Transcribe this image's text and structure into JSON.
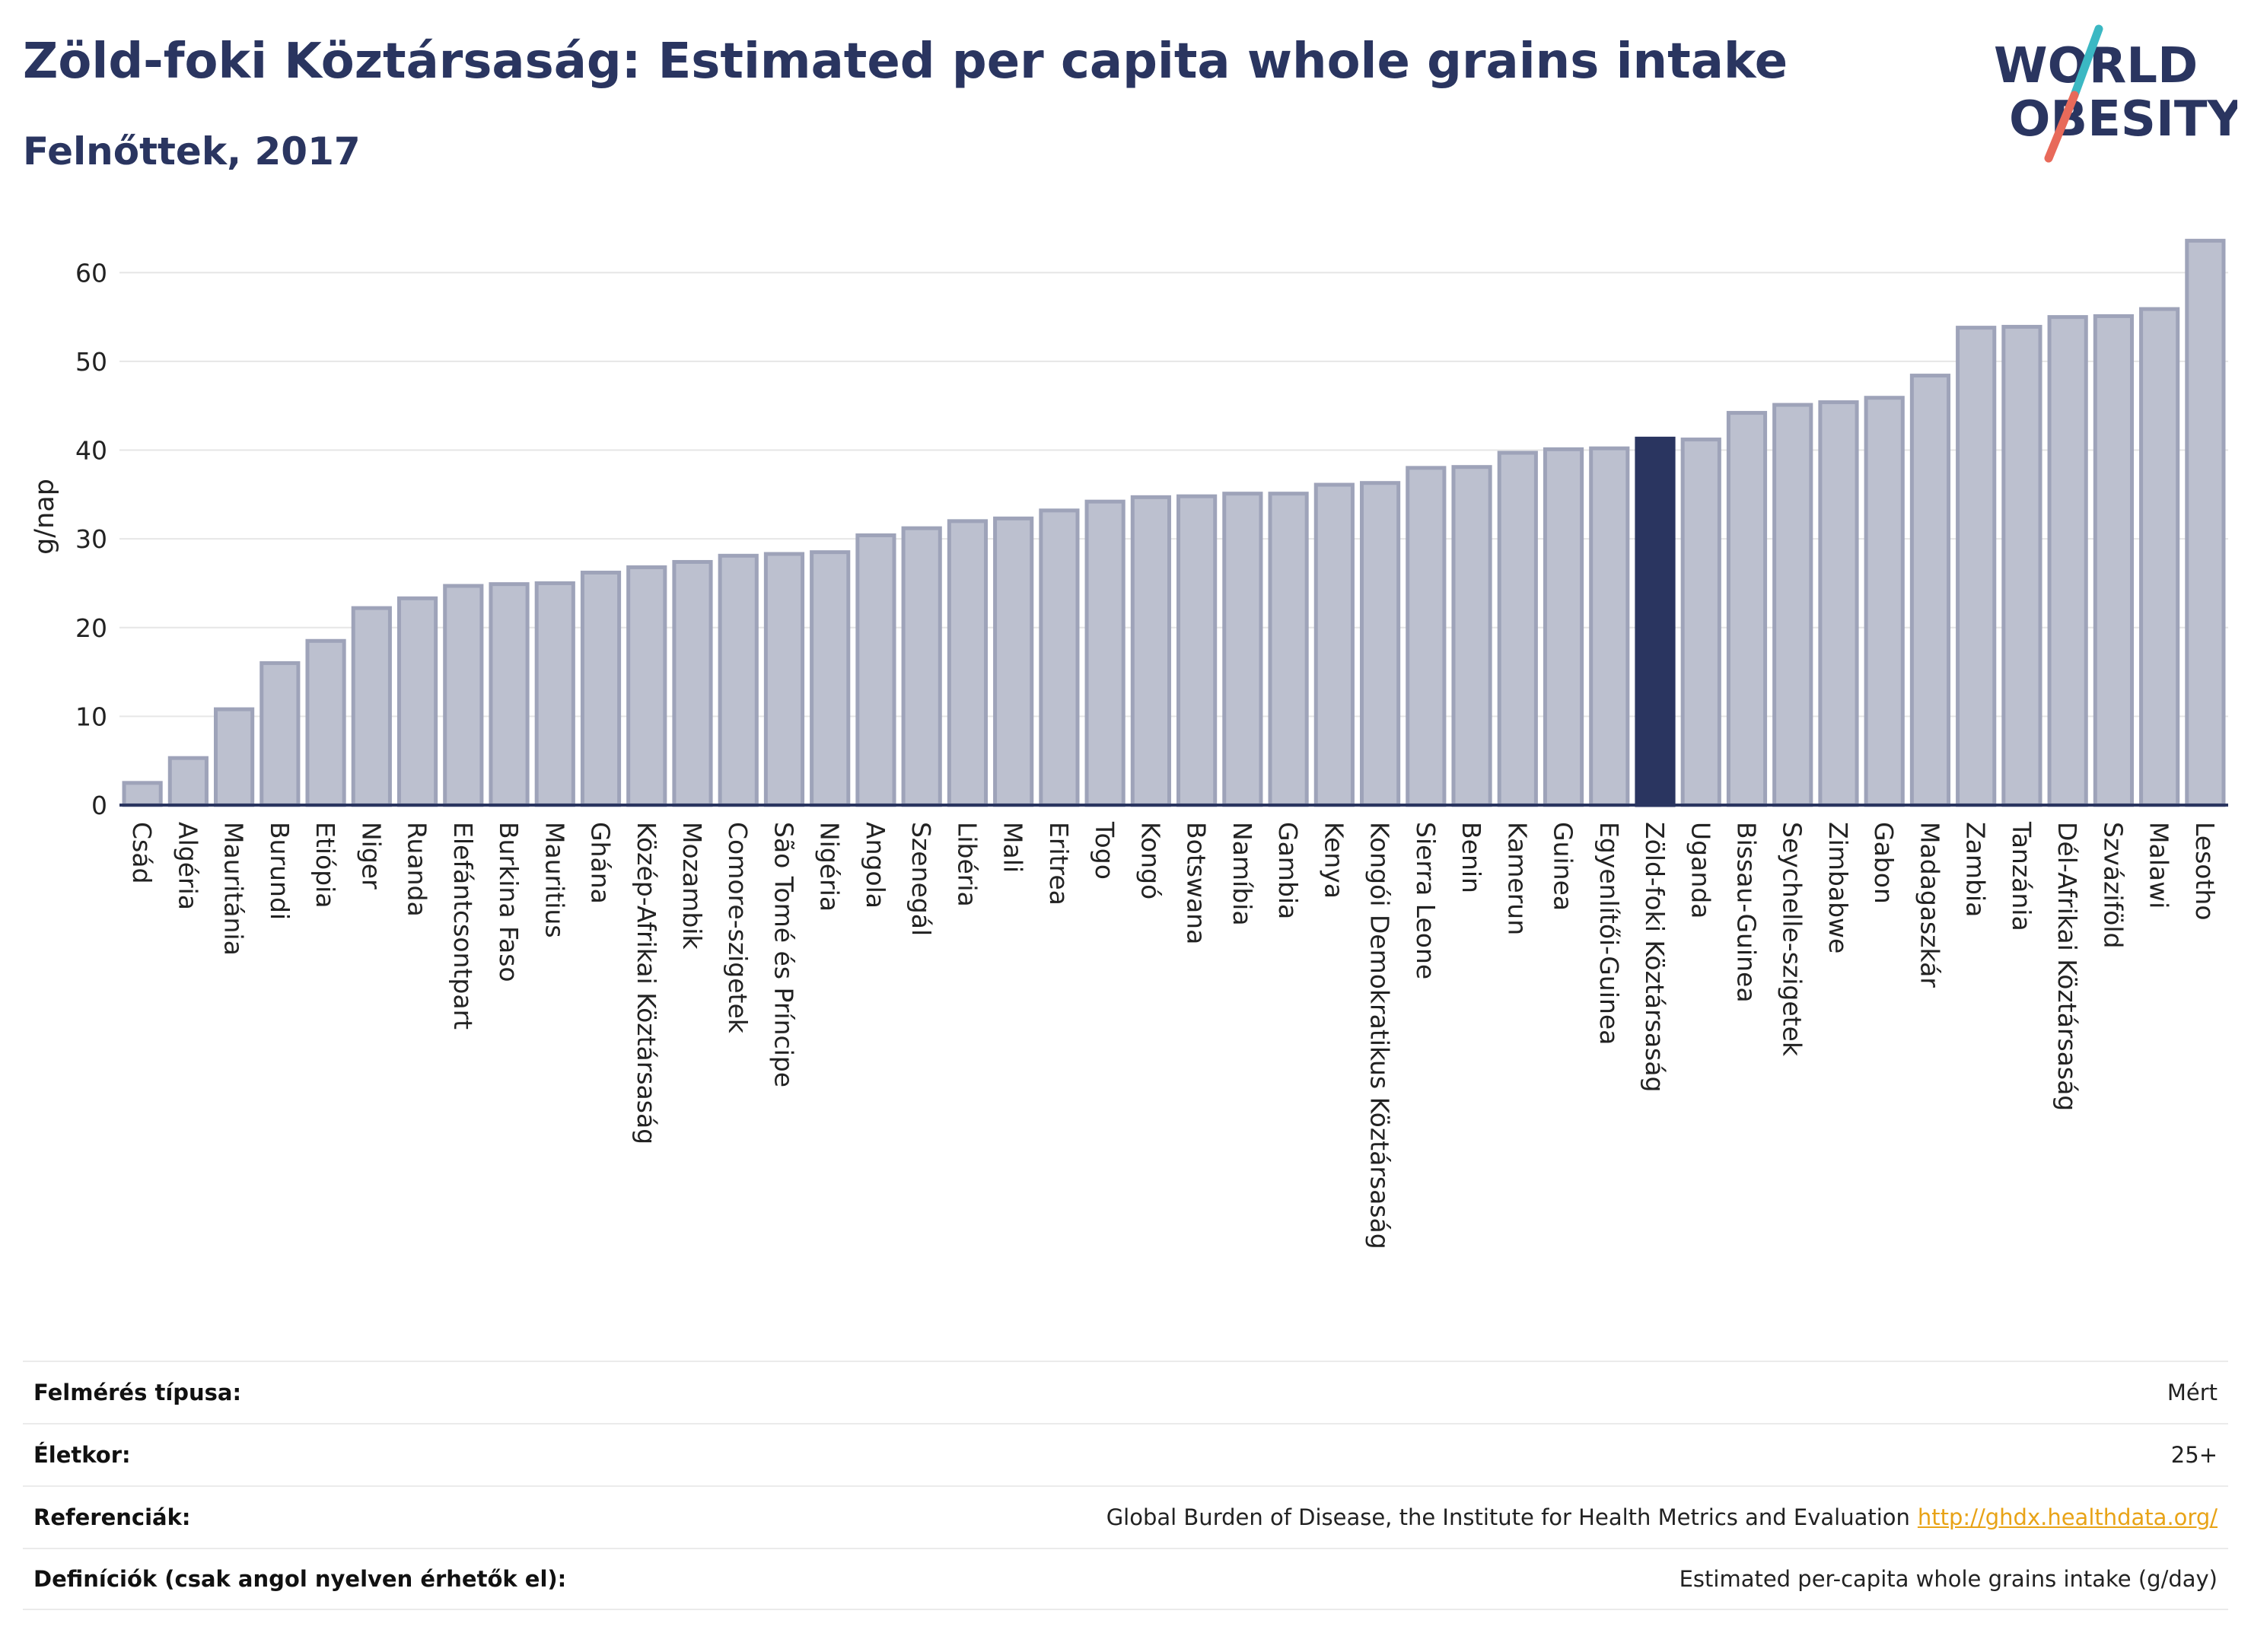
{
  "header": {
    "title": "Zöld-foki Köztársaság: Estimated per capita whole grains intake",
    "subtitle": "Felnőttek, 2017"
  },
  "logo": {
    "line1": "WORLD",
    "line2": "OBESITY",
    "colors": {
      "text": "#2a3560",
      "slash_top": "#3bb8c3",
      "slash_bottom": "#e86a5a"
    }
  },
  "chart_data": {
    "type": "bar",
    "ylabel": "g/nap",
    "ylim": [
      0,
      65
    ],
    "yticks": [
      0,
      10,
      20,
      30,
      40,
      50,
      60
    ],
    "grid": true,
    "highlight": "Zöld-foki Köztársaság",
    "colors": {
      "bar": "#bcc0cf",
      "bar_edge": "#9ea3b9",
      "highlight": "#2a3560"
    },
    "categories": [
      "Csád",
      "Algéria",
      "Mauritánia",
      "Burundi",
      "Etiópia",
      "Niger",
      "Ruanda",
      "Elefántcsontpart",
      "Burkina Faso",
      "Mauritius",
      "Ghána",
      "Közép-Afrikai Köztársaság",
      "Mozambik",
      "Comore-szigetek",
      "São Tomé és Príncipe",
      "Nigéria",
      "Angola",
      "Szenegál",
      "Libéria",
      "Mali",
      "Eritrea",
      "Togo",
      "Kongó",
      "Botswana",
      "Namíbia",
      "Gambia",
      "Kenya",
      "Kongói Demokratikus Köztársaság",
      "Sierra Leone",
      "Benin",
      "Kamerun",
      "Guinea",
      "Egyenlítői-Guinea",
      "Zöld-foki Köztársaság",
      "Uganda",
      "Bissau-Guinea",
      "Seychelle-szigetek",
      "Zimbabwe",
      "Gabon",
      "Madagaszkár",
      "Zambia",
      "Tanzánia",
      "Dél-Afrikai Köztársaság",
      "Szváziföld",
      "Malawi",
      "Lesotho"
    ],
    "values": [
      2.5,
      5.3,
      10.8,
      16.0,
      18.5,
      22.2,
      23.3,
      24.7,
      24.9,
      25.0,
      26.2,
      26.8,
      27.4,
      28.1,
      28.3,
      28.5,
      30.4,
      31.2,
      32.0,
      32.3,
      33.2,
      34.2,
      34.7,
      34.8,
      35.1,
      35.1,
      36.1,
      36.3,
      38.0,
      38.1,
      39.7,
      40.1,
      40.2,
      41.3,
      41.2,
      44.2,
      45.1,
      45.4,
      45.9,
      48.4,
      53.8,
      53.9,
      55.0,
      55.1,
      55.9,
      63.6
    ]
  },
  "info": {
    "rows": [
      {
        "label": "Felmérés típusa:",
        "value": "Mért"
      },
      {
        "label": "Életkor:",
        "value": "25+"
      },
      {
        "label": "Referenciák:",
        "value": "Global Burden of Disease, the Institute for Health Metrics and Evaluation",
        "link": "http://ghdx.healthdata.org/"
      },
      {
        "label": "Definíciók (csak angol nyelven érhetők el):",
        "value": "Estimated per-capita whole grains intake (g/day)"
      }
    ]
  }
}
